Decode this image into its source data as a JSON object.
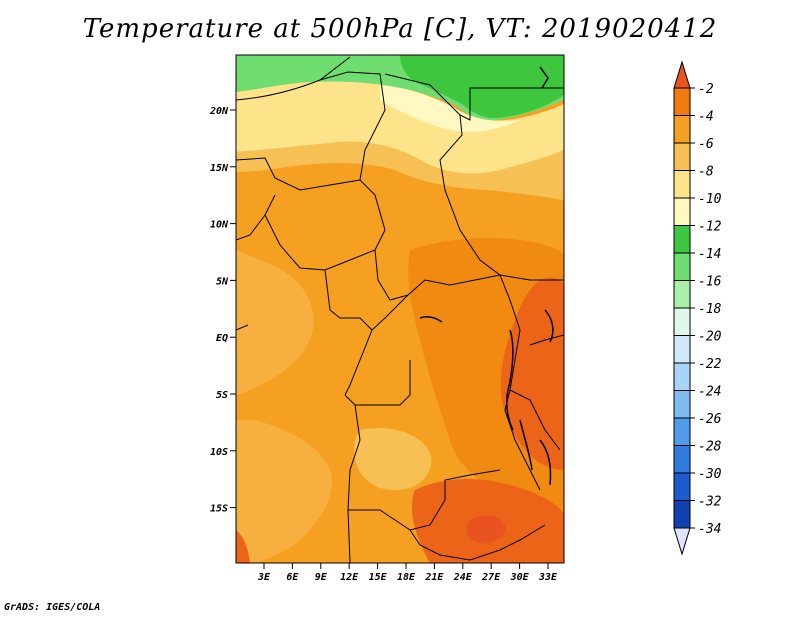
{
  "title": "Temperature at 500hPa [C], VT: 2019020412",
  "credit": "GrADS: IGES/COLA",
  "lat_labels": [
    "20N",
    "15N",
    "10N",
    "5N",
    "EQ",
    "5S",
    "10S",
    "15S"
  ],
  "lon_labels": [
    "3E",
    "6E",
    "9E",
    "12E",
    "15E",
    "18E",
    "21E",
    "24E",
    "27E",
    "30E",
    "33E"
  ],
  "colorbar": {
    "labels": [
      "-2",
      "-4",
      "-6",
      "-8",
      "-10",
      "-12",
      "-14",
      "-16",
      "-18",
      "-20",
      "-22",
      "-24",
      "-26",
      "-28",
      "-30",
      "-32",
      "-34"
    ],
    "colors": [
      "#e8531f",
      "#f07a10",
      "#f5a020",
      "#f7c055",
      "#fde38a",
      "#fff8c0",
      "#3fc63f",
      "#6fdd6f",
      "#a8f0a8",
      "#dff8ea",
      "#cfe9f9",
      "#a7d4f7",
      "#7fbcf0",
      "#519ce8",
      "#2f7be0",
      "#1e5cce",
      "#1141b0",
      "#0a1a80",
      "#e0e4ff"
    ]
  }
}
